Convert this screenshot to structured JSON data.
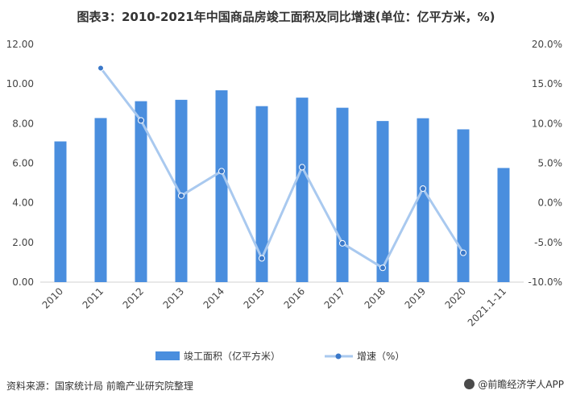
{
  "title": "图表3：2010-2021年中国商品房竣工面积及同比增速(单位：亿平方米，%)",
  "source": "资料来源：国家统计局 前瞻产业研究院整理",
  "credit": "@前瞻经济学人APP",
  "chart_data": {
    "type": "bar",
    "categories": [
      "2010",
      "2011",
      "2012",
      "2013",
      "2014",
      "2015",
      "2016",
      "2017",
      "2018",
      "2019",
      "2020",
      "2021.1-11"
    ],
    "series": [
      {
        "name": "竣工面积（亿平方米）",
        "type": "bar",
        "axis": "left",
        "color": "#4a8ede",
        "values": [
          7.1,
          8.28,
          9.13,
          9.2,
          9.68,
          8.88,
          9.31,
          8.8,
          8.13,
          8.27,
          7.71,
          5.76
        ]
      },
      {
        "name": "增速（%）",
        "type": "line",
        "axis": "right",
        "color": "#a9c9ef",
        "marker_color": "#3a78c9",
        "values": [
          null,
          17.0,
          10.4,
          0.9,
          4.0,
          -7.0,
          4.5,
          -5.1,
          -8.2,
          1.8,
          -6.3,
          null
        ]
      }
    ],
    "y_left": {
      "min": 0,
      "max": 12,
      "step": 2,
      "ticks": [
        "0.00",
        "2.00",
        "4.00",
        "6.00",
        "8.00",
        "10.00",
        "12.00"
      ]
    },
    "y_right": {
      "min": -10,
      "max": 20,
      "step": 5,
      "ticks": [
        "-10.0%",
        "-5.0%",
        "0.0%",
        "5.0%",
        "10.0%",
        "15.0%",
        "20.0%"
      ]
    },
    "legend": "bottom-center",
    "grid": false
  }
}
